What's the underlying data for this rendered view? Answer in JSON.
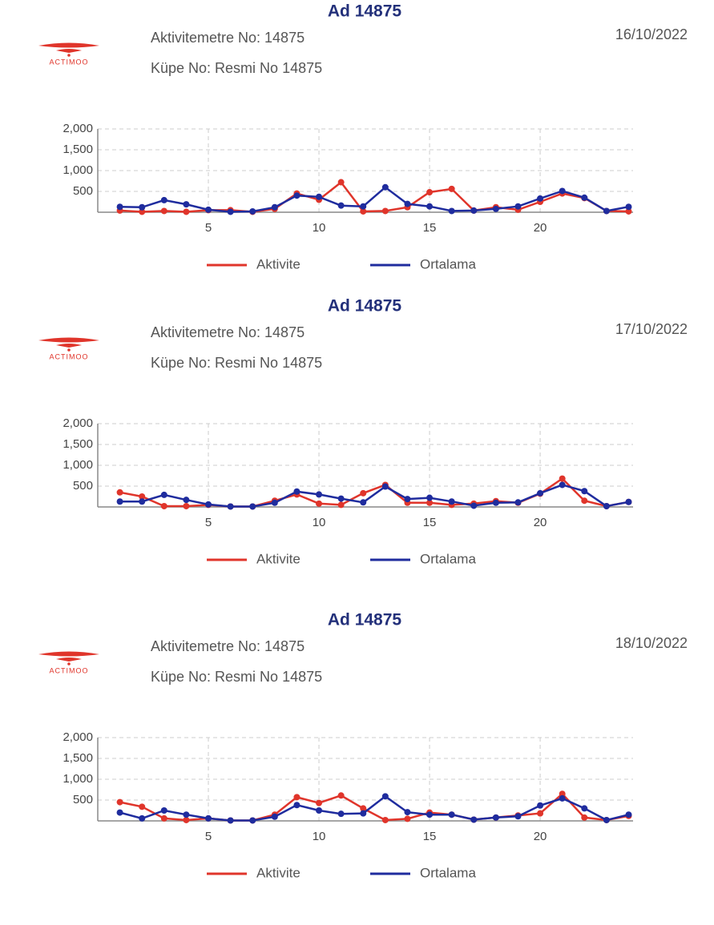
{
  "chart_data": [
    {
      "type": "line",
      "title": "Ad 14875",
      "logo": "ACTIMOO",
      "meter": "Aktivitemetre No: 14875",
      "tag": "Küpe No: Resmi No 14875",
      "date": "16/10/2022",
      "x": [
        1,
        2,
        3,
        4,
        5,
        6,
        7,
        8,
        9,
        10,
        11,
        12,
        13,
        14,
        15,
        16,
        17,
        18,
        19,
        20,
        21,
        22,
        23,
        24
      ],
      "xlim": [
        0,
        24.2
      ],
      "xticks": [
        5,
        10,
        15,
        20
      ],
      "ylim": [
        0,
        2000
      ],
      "yticks": [
        500,
        {
          "value": 1000,
          "label": "1,000"
        },
        {
          "value": 1500,
          "label": "1,500"
        },
        {
          "value": 2000,
          "label": "2,000"
        }
      ],
      "grid": true,
      "series": [
        {
          "name": "Aktivite",
          "color": "#e0352b",
          "values": [
            40,
            10,
            30,
            10,
            50,
            50,
            10,
            80,
            450,
            300,
            720,
            20,
            30,
            120,
            480,
            560,
            40,
            120,
            60,
            250,
            450,
            340,
            30,
            20
          ]
        },
        {
          "name": "Ortalama",
          "color": "#1f2c9e",
          "values": [
            130,
            120,
            290,
            190,
            60,
            10,
            20,
            120,
            400,
            370,
            160,
            140,
            600,
            200,
            140,
            30,
            40,
            80,
            140,
            330,
            510,
            350,
            30,
            130
          ]
        }
      ]
    },
    {
      "type": "line",
      "title": "Ad 14875",
      "logo": "ACTIMOO",
      "meter": "Aktivitemetre No: 14875",
      "tag": "Küpe No: Resmi No 14875",
      "date": "17/10/2022",
      "x": [
        1,
        2,
        3,
        4,
        5,
        6,
        7,
        8,
        9,
        10,
        11,
        12,
        13,
        14,
        15,
        16,
        17,
        18,
        19,
        20,
        21,
        22,
        23,
        24
      ],
      "xlim": [
        0,
        24.2
      ],
      "xticks": [
        5,
        10,
        15,
        20
      ],
      "ylim": [
        0,
        2000
      ],
      "yticks": [
        500,
        {
          "value": 1000,
          "label": "1,000"
        },
        {
          "value": 1500,
          "label": "1,500"
        },
        {
          "value": 2000,
          "label": "2,000"
        }
      ],
      "grid": true,
      "series": [
        {
          "name": "Aktivite",
          "color": "#e0352b",
          "values": [
            350,
            250,
            20,
            20,
            50,
            10,
            10,
            150,
            300,
            80,
            50,
            330,
            530,
            100,
            100,
            50,
            80,
            140,
            100,
            320,
            680,
            150,
            20,
            120
          ]
        },
        {
          "name": "Ortalama",
          "color": "#1f2c9e",
          "values": [
            130,
            130,
            290,
            170,
            60,
            10,
            10,
            100,
            370,
            300,
            200,
            110,
            490,
            190,
            220,
            130,
            30,
            100,
            110,
            330,
            530,
            380,
            20,
            120
          ]
        }
      ]
    },
    {
      "type": "line",
      "title": "Ad 14875",
      "logo": "ACTIMOO",
      "meter": "Aktivitemetre No: 14875",
      "tag": "Küpe No: Resmi No 14875",
      "date": "18/10/2022",
      "x": [
        1,
        2,
        3,
        4,
        5,
        6,
        7,
        8,
        9,
        10,
        11,
        12,
        13,
        14,
        15,
        16,
        17,
        18,
        19,
        20,
        21,
        22,
        23,
        24
      ],
      "xlim": [
        0,
        24.2
      ],
      "xticks": [
        5,
        10,
        15,
        20
      ],
      "ylim": [
        0,
        2000
      ],
      "yticks": [
        500,
        {
          "value": 1000,
          "label": "1,000"
        },
        {
          "value": 1500,
          "label": "1,500"
        },
        {
          "value": 2000,
          "label": "2,000"
        }
      ],
      "grid": true,
      "series": [
        {
          "name": "Aktivite",
          "color": "#e0352b",
          "values": [
            450,
            340,
            60,
            20,
            60,
            10,
            10,
            150,
            570,
            430,
            610,
            300,
            20,
            50,
            200,
            150,
            30,
            80,
            130,
            180,
            650,
            80,
            20,
            120
          ]
        },
        {
          "name": "Ortalama",
          "color": "#1f2c9e",
          "values": [
            200,
            60,
            250,
            150,
            60,
            10,
            10,
            100,
            380,
            250,
            170,
            180,
            590,
            210,
            150,
            150,
            30,
            80,
            110,
            370,
            540,
            300,
            20,
            150
          ]
        }
      ]
    }
  ]
}
